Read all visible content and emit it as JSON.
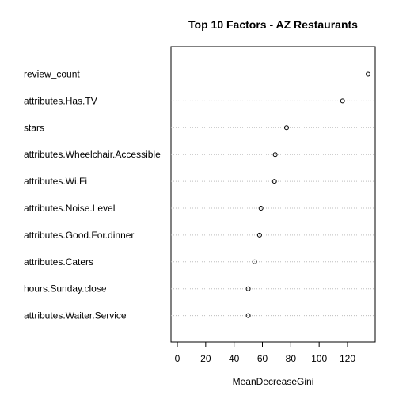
{
  "chart_data": {
    "type": "scatter",
    "title": "Top 10 Factors - AZ Restaurants",
    "xlabel": "MeanDecreaseGini",
    "ylabel": "",
    "categories": [
      "review_count",
      "attributes.Has.TV",
      "stars",
      "attributes.Wheelchair.Accessible",
      "attributes.Wi.Fi",
      "attributes.Noise.Level",
      "attributes.Good.For.dinner",
      "attributes.Caters",
      "hours.Sunday.close",
      "attributes.Waiter.Service"
    ],
    "values": [
      134.5,
      116.5,
      77.0,
      69.0,
      68.5,
      59.0,
      58.0,
      54.5,
      50.0,
      50.0
    ],
    "xlim": [
      -5,
      139
    ],
    "xticks": [
      0,
      20,
      40,
      60,
      80,
      100,
      120
    ],
    "grid": "dotted horizontal guide lines",
    "legend": "none"
  }
}
